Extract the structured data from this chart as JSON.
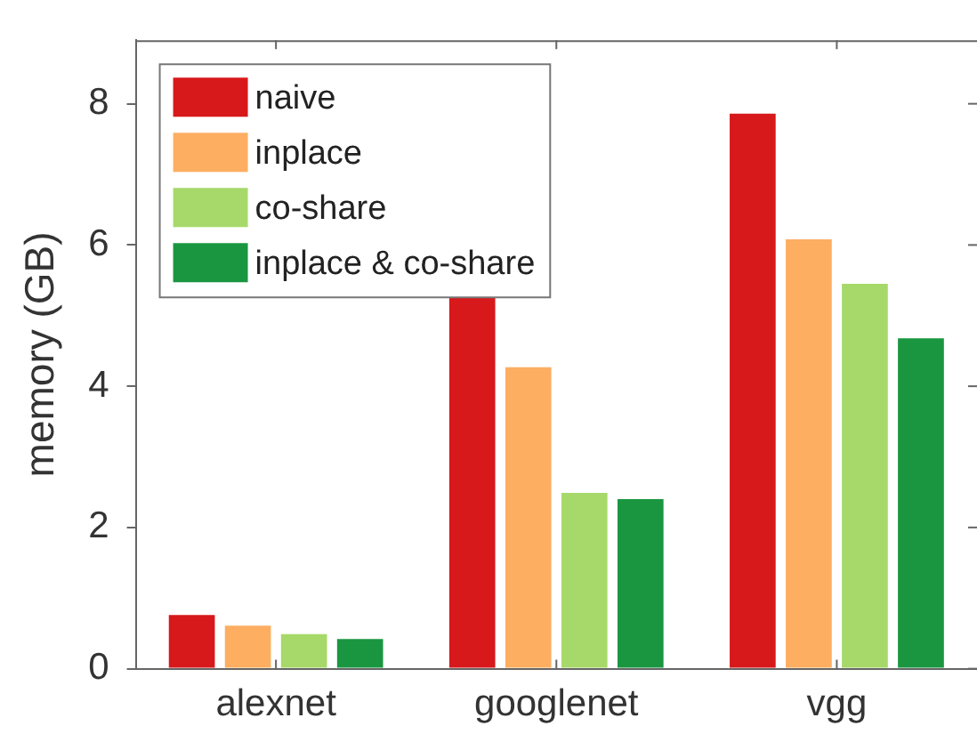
{
  "chart_data": {
    "type": "bar",
    "ylabel": "memory (GB)",
    "categories": [
      "alexnet",
      "googlenet",
      "vgg"
    ],
    "series": [
      {
        "name": "naive",
        "color": "#d7191c",
        "values": [
          0.76,
          5.26,
          7.86
        ]
      },
      {
        "name": "inplace",
        "color": "#fdae61",
        "values": [
          0.61,
          4.27,
          6.08
        ]
      },
      {
        "name": "co-share",
        "color": "#a6d96a",
        "values": [
          0.49,
          2.49,
          5.45
        ]
      },
      {
        "name": "inplace & co-share",
        "color": "#1a9641",
        "values": [
          0.42,
          2.4,
          4.68
        ]
      }
    ],
    "ylim": [
      0,
      8.9
    ],
    "yticks": [
      0,
      2,
      4,
      6,
      8
    ],
    "grid": false,
    "legend": "top left"
  }
}
